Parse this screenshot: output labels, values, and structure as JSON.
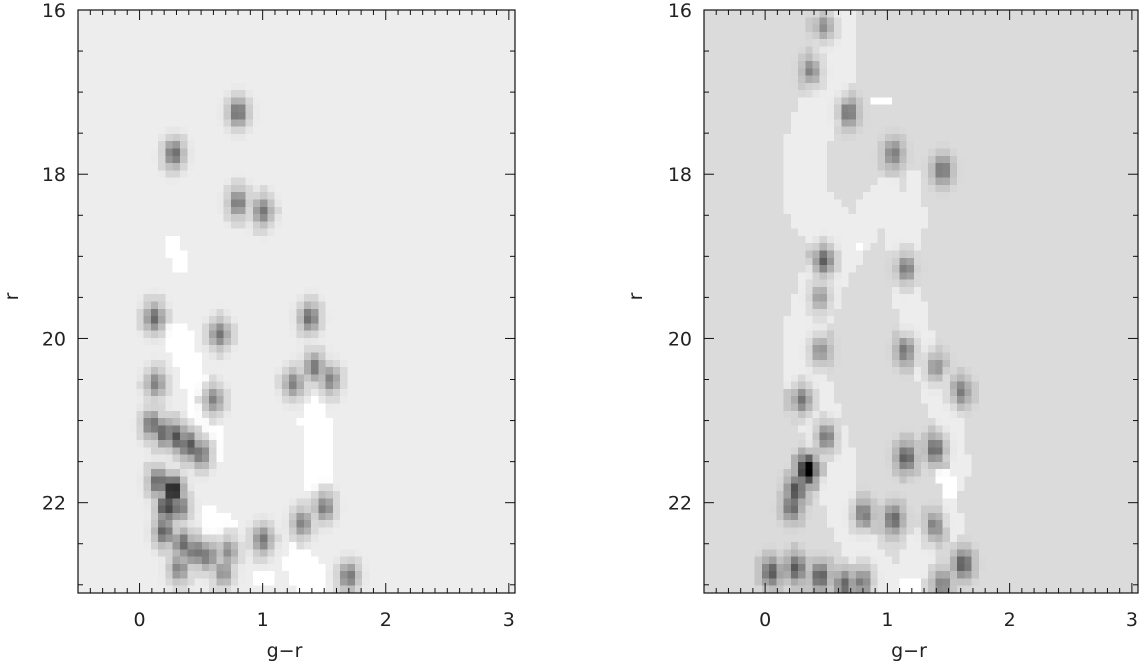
{
  "figure": {
    "background": "#ffffff",
    "tick_color": "#111111"
  },
  "chart_data": [
    {
      "type": "heatmap",
      "title": "",
      "xlabel": "g−r",
      "ylabel": "r",
      "xlim": [
        -0.5,
        3.05
      ],
      "ylim": [
        23.1,
        16.0
      ],
      "y_inverted": true,
      "grid": false,
      "xticks": [
        0,
        1,
        2,
        3
      ],
      "xtick_labels": [
        "0",
        "1",
        "2",
        "3"
      ],
      "yticks": [
        16,
        18,
        20,
        22
      ],
      "ytick_labels": [
        "16",
        "18",
        "20",
        "22"
      ],
      "background_level": 0.93,
      "colormap": "gray",
      "regions": [
        {
          "kind": "white",
          "x": [
            0.31,
            0.38,
            0.6
          ],
          "y": [
            20.0,
            20.2,
            21.35
          ],
          "w": 0.1
        },
        {
          "kind": "white",
          "x": [
            0.27,
            0.35
          ],
          "y": [
            18.85,
            19.1
          ],
          "w": 0.06
        },
        {
          "kind": "white",
          "x": [
            1.42,
            1.45,
            1.48
          ],
          "y": [
            21.0,
            21.4,
            21.8
          ],
          "w": 0.12
        },
        {
          "kind": "white",
          "x": [
            1.3,
            1.4
          ],
          "y": [
            22.75,
            22.9
          ],
          "w": 0.12
        },
        {
          "kind": "white",
          "x": [
            0.55,
            0.75
          ],
          "y": [
            22.2,
            22.35
          ],
          "w": 0.07
        },
        {
          "kind": "white",
          "x": [
            0.95,
            1.05
          ],
          "y": [
            22.9,
            22.9
          ],
          "w": 0.05
        }
      ],
      "clumps": [
        {
          "x": 0.28,
          "y": 17.75,
          "s": 0.55
        },
        {
          "x": 0.8,
          "y": 17.25,
          "s": 0.55
        },
        {
          "x": 0.8,
          "y": 18.35,
          "s": 0.5
        },
        {
          "x": 1.0,
          "y": 18.45,
          "s": 0.5
        },
        {
          "x": 0.12,
          "y": 19.75,
          "s": 0.55
        },
        {
          "x": 0.65,
          "y": 19.95,
          "s": 0.5
        },
        {
          "x": 1.38,
          "y": 19.75,
          "s": 0.55
        },
        {
          "x": 0.13,
          "y": 20.55,
          "s": 0.45
        },
        {
          "x": 0.6,
          "y": 20.75,
          "s": 0.45
        },
        {
          "x": 1.25,
          "y": 20.55,
          "s": 0.45
        },
        {
          "x": 1.42,
          "y": 20.35,
          "s": 0.5
        },
        {
          "x": 1.55,
          "y": 20.5,
          "s": 0.45
        },
        {
          "x": 0.1,
          "y": 21.05,
          "s": 0.55
        },
        {
          "x": 0.2,
          "y": 21.15,
          "s": 0.6
        },
        {
          "x": 0.3,
          "y": 21.2,
          "s": 0.65
        },
        {
          "x": 0.4,
          "y": 21.3,
          "s": 0.65
        },
        {
          "x": 0.5,
          "y": 21.4,
          "s": 0.55
        },
        {
          "x": 0.15,
          "y": 21.75,
          "s": 0.6
        },
        {
          "x": 0.27,
          "y": 21.85,
          "s": 0.95
        },
        {
          "x": 0.22,
          "y": 22.05,
          "s": 0.75
        },
        {
          "x": 0.32,
          "y": 22.05,
          "s": 0.55
        },
        {
          "x": 0.2,
          "y": 22.35,
          "s": 0.6
        },
        {
          "x": 0.35,
          "y": 22.5,
          "s": 0.55
        },
        {
          "x": 0.45,
          "y": 22.6,
          "s": 0.55
        },
        {
          "x": 0.55,
          "y": 22.65,
          "s": 0.5
        },
        {
          "x": 0.32,
          "y": 22.8,
          "s": 0.45
        },
        {
          "x": 0.72,
          "y": 22.6,
          "s": 0.4
        },
        {
          "x": 0.68,
          "y": 22.85,
          "s": 0.4
        },
        {
          "x": 1.0,
          "y": 22.45,
          "s": 0.5
        },
        {
          "x": 1.32,
          "y": 22.25,
          "s": 0.45
        },
        {
          "x": 1.5,
          "y": 22.05,
          "s": 0.5
        },
        {
          "x": 1.7,
          "y": 22.9,
          "s": 0.5
        }
      ]
    },
    {
      "type": "heatmap",
      "title": "",
      "xlabel": "g−r",
      "ylabel": "r",
      "xlim": [
        -0.5,
        3.05
      ],
      "ylim": [
        23.1,
        16.0
      ],
      "y_inverted": true,
      "grid": false,
      "xticks": [
        0,
        1,
        2,
        3
      ],
      "xtick_labels": [
        "0",
        "1",
        "2",
        "3"
      ],
      "yticks": [
        16,
        18,
        20,
        22
      ],
      "ytick_labels": [
        "16",
        "18",
        "20",
        "22"
      ],
      "background_level": 0.86,
      "colormap": "gray",
      "regions": [
        {
          "kind": "light",
          "x": [
            0.55,
            0.55,
            0.45,
            0.35,
            0.3,
            0.35,
            0.5,
            0.55,
            0.45,
            0.35,
            0.3,
            0.35,
            0.45,
            0.55,
            0.6
          ],
          "y": [
            16.0,
            16.8,
            17.2,
            17.6,
            18.0,
            18.4,
            18.6,
            19.0,
            19.4,
            19.8,
            20.2,
            20.6,
            21.0,
            21.4,
            21.8
          ],
          "w": 0.17
        },
        {
          "kind": "light",
          "x": [
            0.7,
            0.85,
            1.0,
            1.1,
            1.15,
            1.2,
            1.3,
            1.4,
            1.5,
            1.55
          ],
          "y": [
            18.9,
            18.5,
            18.3,
            18.6,
            19.2,
            19.7,
            20.2,
            20.6,
            21.0,
            21.6
          ],
          "w": 0.12
        },
        {
          "kind": "light",
          "x": [
            1.2,
            1.25,
            1.2
          ],
          "y": [
            18.1,
            18.5,
            19.0
          ],
          "w": 0.07
        },
        {
          "kind": "light",
          "x": [
            0.55,
            0.65,
            0.8,
            0.95,
            1.1,
            1.2,
            1.3
          ],
          "y": [
            21.8,
            22.2,
            22.6,
            22.9,
            23.0,
            22.8,
            22.5
          ],
          "w": 0.12
        },
        {
          "kind": "light",
          "x": [
            1.5,
            1.55
          ],
          "y": [
            21.9,
            22.3
          ],
          "w": 0.07
        },
        {
          "kind": "white",
          "x": [
            0.92,
            0.98
          ],
          "y": [
            17.1,
            17.1
          ],
          "w": 0.03
        },
        {
          "kind": "white",
          "x": [
            0.76,
            0.76
          ],
          "y": [
            18.85,
            18.9
          ],
          "w": 0.025
        },
        {
          "kind": "white",
          "x": [
            1.45,
            1.52
          ],
          "y": [
            21.65,
            21.8
          ],
          "w": 0.06
        },
        {
          "kind": "white",
          "x": [
            1.15,
            1.25
          ],
          "y": [
            23.0,
            23.0
          ],
          "w": 0.05
        }
      ],
      "clumps": [
        {
          "x": 0.48,
          "y": 16.2,
          "s": 0.4
        },
        {
          "x": 0.38,
          "y": 16.75,
          "s": 0.4
        },
        {
          "x": 0.68,
          "y": 17.25,
          "s": 0.45
        },
        {
          "x": 1.05,
          "y": 17.75,
          "s": 0.4
        },
        {
          "x": 1.45,
          "y": 17.95,
          "s": 0.45
        },
        {
          "x": 0.48,
          "y": 19.05,
          "s": 0.6
        },
        {
          "x": 1.15,
          "y": 19.15,
          "s": 0.5
        },
        {
          "x": 0.45,
          "y": 19.5,
          "s": 0.35
        },
        {
          "x": 0.45,
          "y": 20.15,
          "s": 0.4
        },
        {
          "x": 1.15,
          "y": 20.15,
          "s": 0.45
        },
        {
          "x": 1.4,
          "y": 20.35,
          "s": 0.4
        },
        {
          "x": 1.6,
          "y": 20.65,
          "s": 0.4
        },
        {
          "x": 0.3,
          "y": 20.75,
          "s": 0.5
        },
        {
          "x": 0.5,
          "y": 21.2,
          "s": 0.5
        },
        {
          "x": 0.35,
          "y": 21.6,
          "s": 1.0
        },
        {
          "x": 0.25,
          "y": 21.85,
          "s": 0.6
        },
        {
          "x": 0.22,
          "y": 22.05,
          "s": 0.5
        },
        {
          "x": 1.15,
          "y": 21.45,
          "s": 0.55
        },
        {
          "x": 1.4,
          "y": 21.35,
          "s": 0.55
        },
        {
          "x": 0.8,
          "y": 22.15,
          "s": 0.45
        },
        {
          "x": 1.05,
          "y": 22.2,
          "s": 0.5
        },
        {
          "x": 1.38,
          "y": 22.3,
          "s": 0.4
        },
        {
          "x": 1.62,
          "y": 22.75,
          "s": 0.55
        },
        {
          "x": 0.05,
          "y": 22.85,
          "s": 0.55
        },
        {
          "x": 0.25,
          "y": 22.8,
          "s": 0.55
        },
        {
          "x": 0.45,
          "y": 22.9,
          "s": 0.55
        },
        {
          "x": 0.65,
          "y": 23.0,
          "s": 0.5
        },
        {
          "x": 0.8,
          "y": 22.95,
          "s": 0.45
        },
        {
          "x": 1.45,
          "y": 23.0,
          "s": 0.4
        }
      ]
    }
  ]
}
